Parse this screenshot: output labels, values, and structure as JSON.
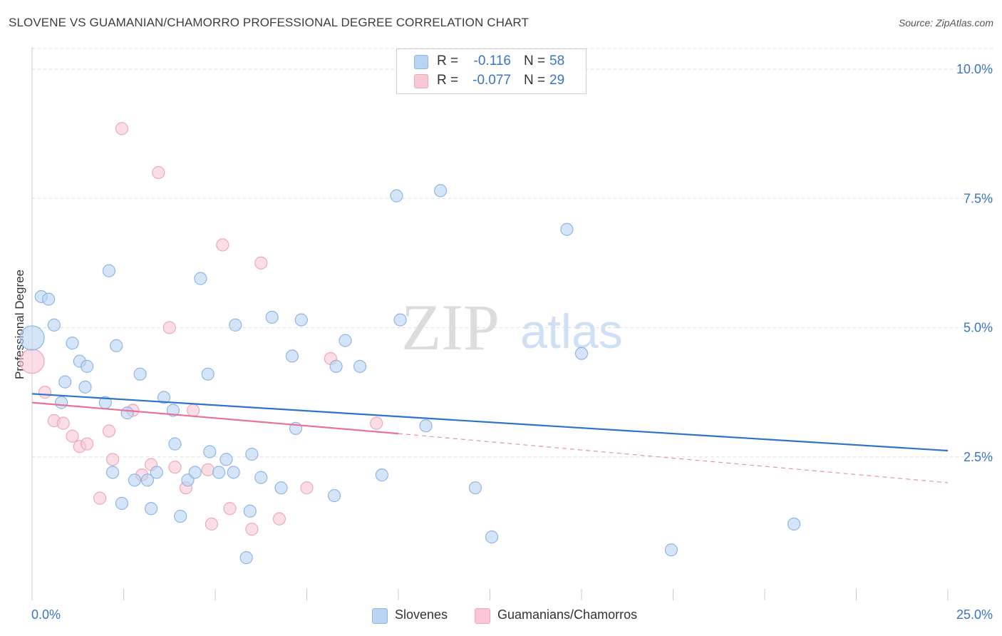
{
  "header": {
    "title": "SLOVENE VS GUAMANIAN/CHAMORRO PROFESSIONAL DEGREE CORRELATION CHART",
    "source": "Source: ZipAtlas.com"
  },
  "watermark": {
    "zip": "ZIP",
    "atlas": "atlas"
  },
  "colors": {
    "blue_fill": "#b9d3f3",
    "blue_stroke": "#8fb5e6",
    "blue_line": "#2f72cc",
    "pink_fill": "#f8c6d4",
    "pink_stroke": "#eea7bc",
    "pink_line": "#e8719b",
    "axis_text": "#3a75c4",
    "grid": "#dddddd"
  },
  "stats": [
    {
      "r_label": "R =",
      "r_value": "-0.116",
      "n_label": "N =",
      "n_value": "58",
      "color": "#b9d3f3",
      "border": "#8fb5e6"
    },
    {
      "r_label": "R =",
      "r_value": "-0.077",
      "n_label": "N =",
      "n_value": "29",
      "color": "#f8c6d4",
      "border": "#eea7bc"
    }
  ],
  "legend": [
    {
      "label": "Slovenes",
      "color": "#b9d3f3",
      "border": "#8fb5e6"
    },
    {
      "label": "Guamanians/Chamorros",
      "color": "#f8c6d4",
      "border": "#eea7bc"
    }
  ],
  "chart_data": {
    "type": "scatter",
    "title": "SLOVENE VS GUAMANIAN/CHAMORRO PROFESSIONAL DEGREE CORRELATION CHART",
    "xlabel": "",
    "ylabel": "Professional Degree",
    "xlim": [
      0,
      25
    ],
    "ylim": [
      0,
      10.4
    ],
    "x_tick_labels": [
      "0.0%",
      "25.0%"
    ],
    "y_ticks": [
      {
        "value": 2.5,
        "label": "2.5%"
      },
      {
        "value": 5.0,
        "label": "5.0%"
      },
      {
        "value": 7.5,
        "label": "7.5%"
      },
      {
        "value": 10.0,
        "label": "10.0%"
      }
    ],
    "grid": true,
    "series": [
      {
        "name": "Slovenes",
        "points": [
          {
            "x": 0.0,
            "y": 4.8,
            "big": true
          },
          {
            "x": 0.25,
            "y": 5.6
          },
          {
            "x": 0.45,
            "y": 5.55
          },
          {
            "x": 0.6,
            "y": 5.05
          },
          {
            "x": 1.1,
            "y": 4.7
          },
          {
            "x": 1.3,
            "y": 4.35
          },
          {
            "x": 0.9,
            "y": 3.95
          },
          {
            "x": 1.5,
            "y": 4.25
          },
          {
            "x": 1.45,
            "y": 3.85
          },
          {
            "x": 0.8,
            "y": 3.55
          },
          {
            "x": 2.0,
            "y": 3.55
          },
          {
            "x": 2.1,
            "y": 6.1
          },
          {
            "x": 2.3,
            "y": 4.65
          },
          {
            "x": 2.6,
            "y": 3.35
          },
          {
            "x": 2.95,
            "y": 4.1
          },
          {
            "x": 3.6,
            "y": 3.65
          },
          {
            "x": 3.85,
            "y": 3.4
          },
          {
            "x": 4.6,
            "y": 5.95
          },
          {
            "x": 4.8,
            "y": 4.1
          },
          {
            "x": 5.55,
            "y": 5.05
          },
          {
            "x": 6.55,
            "y": 5.2
          },
          {
            "x": 7.1,
            "y": 4.45
          },
          {
            "x": 7.35,
            "y": 5.15
          },
          {
            "x": 8.3,
            "y": 4.25
          },
          {
            "x": 8.55,
            "y": 4.75
          },
          {
            "x": 8.95,
            "y": 4.25
          },
          {
            "x": 9.95,
            "y": 7.55
          },
          {
            "x": 10.05,
            "y": 5.15
          },
          {
            "x": 11.15,
            "y": 7.65
          },
          {
            "x": 14.6,
            "y": 6.9
          },
          {
            "x": 15.0,
            "y": 4.5
          },
          {
            "x": 3.9,
            "y": 2.75
          },
          {
            "x": 4.85,
            "y": 2.6
          },
          {
            "x": 5.3,
            "y": 2.45
          },
          {
            "x": 6.0,
            "y": 2.55
          },
          {
            "x": 7.2,
            "y": 3.05
          },
          {
            "x": 10.75,
            "y": 3.1
          },
          {
            "x": 2.2,
            "y": 2.2
          },
          {
            "x": 2.8,
            "y": 2.05
          },
          {
            "x": 3.15,
            "y": 2.05
          },
          {
            "x": 3.4,
            "y": 2.2
          },
          {
            "x": 4.25,
            "y": 2.05
          },
          {
            "x": 4.45,
            "y": 2.2
          },
          {
            "x": 5.1,
            "y": 2.2
          },
          {
            "x": 5.5,
            "y": 2.2
          },
          {
            "x": 6.25,
            "y": 2.1
          },
          {
            "x": 6.8,
            "y": 1.9
          },
          {
            "x": 8.25,
            "y": 1.75
          },
          {
            "x": 9.55,
            "y": 2.15
          },
          {
            "x": 12.1,
            "y": 1.9
          },
          {
            "x": 2.45,
            "y": 1.6
          },
          {
            "x": 3.25,
            "y": 1.5
          },
          {
            "x": 4.05,
            "y": 1.35
          },
          {
            "x": 5.95,
            "y": 1.45
          },
          {
            "x": 12.55,
            "y": 0.95
          },
          {
            "x": 5.85,
            "y": 0.55
          },
          {
            "x": 17.45,
            "y": 0.7
          },
          {
            "x": 20.8,
            "y": 1.2
          }
        ],
        "trend": {
          "x0": 0,
          "y0": 3.72,
          "x1": 25,
          "y1": 2.62
        }
      },
      {
        "name": "Guamanians/Chamorros",
        "points": [
          {
            "x": 0.0,
            "y": 4.35,
            "big": true
          },
          {
            "x": 0.35,
            "y": 3.75
          },
          {
            "x": 0.6,
            "y": 3.2
          },
          {
            "x": 0.85,
            "y": 3.15
          },
          {
            "x": 1.1,
            "y": 2.9
          },
          {
            "x": 1.3,
            "y": 2.7
          },
          {
            "x": 1.5,
            "y": 2.75
          },
          {
            "x": 1.85,
            "y": 1.7
          },
          {
            "x": 2.1,
            "y": 3.0
          },
          {
            "x": 2.2,
            "y": 2.45
          },
          {
            "x": 2.45,
            "y": 8.85
          },
          {
            "x": 2.75,
            "y": 3.4
          },
          {
            "x": 3.0,
            "y": 2.15
          },
          {
            "x": 3.25,
            "y": 2.35
          },
          {
            "x": 3.45,
            "y": 8.0
          },
          {
            "x": 3.75,
            "y": 5.0
          },
          {
            "x": 3.9,
            "y": 2.3
          },
          {
            "x": 4.2,
            "y": 1.9
          },
          {
            "x": 4.4,
            "y": 3.4
          },
          {
            "x": 4.8,
            "y": 2.25
          },
          {
            "x": 4.9,
            "y": 1.2
          },
          {
            "x": 5.2,
            "y": 6.6
          },
          {
            "x": 5.4,
            "y": 1.5
          },
          {
            "x": 6.0,
            "y": 1.1
          },
          {
            "x": 6.25,
            "y": 6.25
          },
          {
            "x": 6.75,
            "y": 1.3
          },
          {
            "x": 7.5,
            "y": 1.9
          },
          {
            "x": 8.15,
            "y": 4.4
          },
          {
            "x": 9.4,
            "y": 3.15
          }
        ],
        "trend": {
          "x0": 0,
          "y0": 3.55,
          "x1": 10,
          "y1": 2.95
        },
        "trend_dashed": {
          "x0": 10,
          "y0": 2.95,
          "x1": 25,
          "y1": 2.0
        }
      }
    ]
  }
}
